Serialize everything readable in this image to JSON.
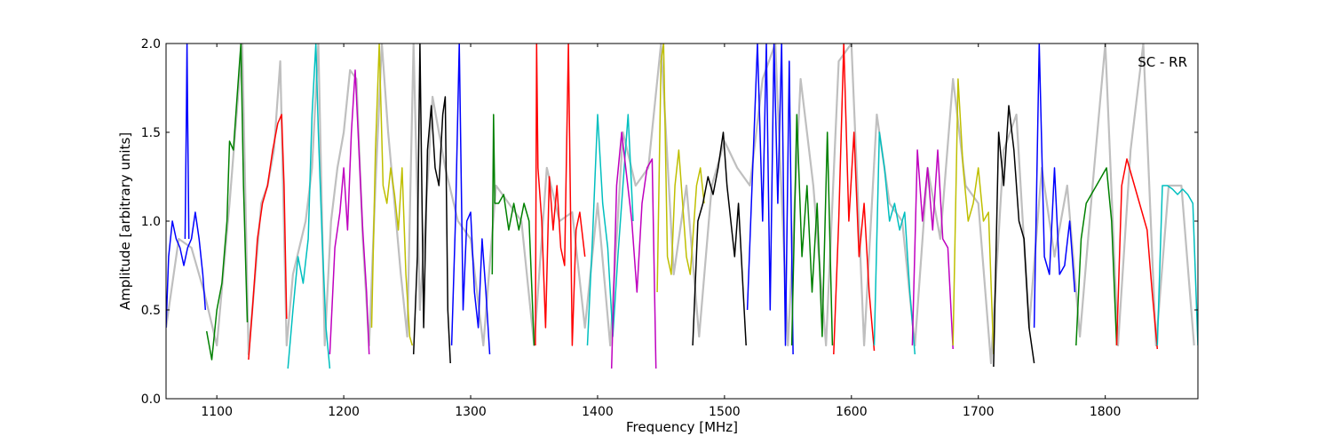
{
  "chart_data": {
    "type": "line",
    "xlabel": "Frequency [MHz]",
    "ylabel": "Amplitude [arbitrary units]",
    "annotation": "SC - RR",
    "xlim": [
      1060,
      1873
    ],
    "ylim": [
      0.0,
      2.0
    ],
    "xticks": [
      1100,
      1200,
      1300,
      1400,
      1500,
      1600,
      1700,
      1800
    ],
    "yticks": [
      0.0,
      0.5,
      1.0,
      1.5,
      2.0
    ],
    "ytick_labels": [
      "0.0",
      "0.5",
      "1.0",
      "1.5",
      "2.0"
    ],
    "grid": false,
    "legend": "none",
    "background_series": {
      "color": "#bfbfbf",
      "x": [
        1060,
        1070,
        1080,
        1090,
        1100,
        1110,
        1120,
        1125,
        1135,
        1140,
        1145,
        1150,
        1155,
        1160,
        1170,
        1175,
        1180,
        1185,
        1190,
        1195,
        1200,
        1205,
        1210,
        1215,
        1220,
        1225,
        1230,
        1235,
        1240,
        1245,
        1250,
        1255,
        1260,
        1270,
        1280,
        1290,
        1300,
        1310,
        1320,
        1330,
        1340,
        1350,
        1360,
        1370,
        1380,
        1390,
        1400,
        1410,
        1420,
        1430,
        1440,
        1450,
        1460,
        1470,
        1480,
        1490,
        1500,
        1510,
        1520,
        1530,
        1540,
        1550,
        1560,
        1570,
        1580,
        1590,
        1600,
        1610,
        1620,
        1630,
        1640,
        1650,
        1660,
        1670,
        1680,
        1690,
        1700,
        1710,
        1720,
        1730,
        1740,
        1750,
        1760,
        1770,
        1780,
        1790,
        1800,
        1810,
        1820,
        1830,
        1840,
        1850,
        1860,
        1870
      ],
      "y": [
        0.4,
        0.9,
        0.85,
        0.6,
        0.3,
        1.1,
        2.0,
        0.25,
        1.1,
        1.2,
        1.4,
        1.9,
        0.3,
        0.7,
        1.0,
        1.3,
        2.0,
        0.3,
        1.0,
        1.3,
        1.5,
        1.85,
        1.8,
        0.9,
        0.3,
        1.2,
        2.0,
        1.5,
        1.1,
        0.7,
        0.35,
        2.0,
        0.5,
        1.7,
        1.3,
        1.0,
        0.9,
        0.3,
        1.2,
        1.1,
        1.0,
        0.3,
        1.3,
        1.0,
        1.05,
        0.4,
        1.1,
        0.3,
        1.5,
        1.2,
        1.3,
        2.0,
        0.7,
        1.2,
        0.35,
        1.2,
        1.45,
        1.3,
        1.2,
        1.8,
        2.0,
        0.3,
        1.8,
        1.2,
        0.3,
        1.9,
        2.0,
        0.3,
        1.6,
        1.1,
        1.0,
        0.3,
        1.3,
        0.9,
        1.8,
        1.2,
        1.1,
        0.2,
        1.4,
        1.6,
        0.4,
        1.3,
        0.8,
        1.2,
        0.35,
        1.2,
        2.0,
        0.3,
        1.4,
        2.0,
        0.3,
        1.2,
        1.2,
        0.3
      ]
    },
    "series": [
      {
        "color": "#0000ff",
        "x": [
          1060,
          1062,
          1065,
          1068,
          1071,
          1074,
          1077,
          1080,
          1083,
          1086,
          1089,
          1091
        ],
        "y": [
          0.4,
          0.8,
          1.0,
          0.9,
          0.85,
          0.75,
          0.85,
          0.9,
          1.05,
          0.9,
          0.7,
          0.5
        ]
      },
      {
        "color": "#0000ff",
        "x": [
          1075,
          1076,
          1076.5,
          1077,
          1078
        ],
        "y": [
          0.9,
          1.6,
          2.0,
          1.6,
          0.9
        ]
      },
      {
        "color": "#008000",
        "x": [
          1092,
          1096,
          1100,
          1104,
          1108,
          1110,
          1113,
          1116,
          1119,
          1121,
          1124
        ],
        "y": [
          0.38,
          0.22,
          0.5,
          0.65,
          1.0,
          1.45,
          1.4,
          1.7,
          2.0,
          1.2,
          0.43
        ]
      },
      {
        "color": "#ff0000",
        "x": [
          1125,
          1128,
          1132,
          1136,
          1140,
          1144,
          1148,
          1151,
          1153,
          1155
        ],
        "y": [
          0.22,
          0.5,
          0.9,
          1.1,
          1.2,
          1.4,
          1.55,
          1.6,
          1.2,
          0.45
        ]
      },
      {
        "color": "#00bfbf",
        "x": [
          1156,
          1160,
          1164,
          1168,
          1172,
          1175,
          1178,
          1180,
          1183,
          1186,
          1189
        ],
        "y": [
          0.17,
          0.5,
          0.8,
          0.65,
          0.9,
          1.6,
          2.0,
          1.5,
          0.9,
          0.4,
          0.17
        ]
      },
      {
        "color": "#bf00bf",
        "x": [
          1189,
          1193,
          1197,
          1200,
          1203,
          1206,
          1209,
          1212,
          1215,
          1218,
          1220
        ],
        "y": [
          0.25,
          0.85,
          1.05,
          1.3,
          0.95,
          1.5,
          1.85,
          1.4,
          0.95,
          0.6,
          0.25
        ]
      },
      {
        "color": "#bfbf00",
        "x": [
          1222,
          1225,
          1228,
          1231,
          1234,
          1237,
          1240,
          1243,
          1246,
          1249,
          1252,
          1254
        ],
        "y": [
          0.4,
          1.4,
          2.0,
          1.2,
          1.1,
          1.3,
          1.15,
          0.95,
          1.3,
          0.7,
          0.35,
          0.3
        ]
      },
      {
        "color": "#000000",
        "x": [
          1255,
          1258,
          1260,
          1263,
          1266,
          1269,
          1272,
          1275,
          1278,
          1280,
          1282,
          1284
        ],
        "y": [
          0.25,
          0.8,
          2.0,
          0.4,
          1.4,
          1.65,
          1.3,
          1.2,
          1.6,
          1.7,
          0.5,
          0.2
        ]
      },
      {
        "color": "#0000ff",
        "x": [
          1285,
          1288,
          1291,
          1294,
          1297,
          1300,
          1303,
          1306,
          1309,
          1312,
          1315
        ],
        "y": [
          0.3,
          1.0,
          2.0,
          0.5,
          1.0,
          1.05,
          0.6,
          0.4,
          0.9,
          0.6,
          0.25
        ]
      },
      {
        "color": "#008000",
        "x": [
          1317,
          1318,
          1319,
          1322,
          1326,
          1330,
          1334,
          1338,
          1342,
          1346,
          1350
        ],
        "y": [
          0.7,
          1.6,
          1.1,
          1.1,
          1.15,
          0.95,
          1.1,
          0.95,
          1.1,
          1.0,
          0.3
        ]
      },
      {
        "color": "#ff0000",
        "x": [
          1351,
          1352,
          1353,
          1356,
          1359,
          1362,
          1365,
          1368,
          1371,
          1374,
          1377,
          1380,
          1383,
          1386,
          1390
        ],
        "y": [
          0.3,
          2.0,
          1.3,
          1.0,
          0.4,
          1.25,
          0.95,
          1.2,
          0.85,
          0.75,
          2.0,
          0.3,
          0.95,
          1.05,
          0.8
        ]
      },
      {
        "color": "#00bfbf",
        "x": [
          1392,
          1396,
          1400,
          1404,
          1408,
          1412,
          1416,
          1420,
          1424,
          1428
        ],
        "y": [
          0.3,
          0.9,
          1.6,
          1.1,
          0.85,
          0.35,
          0.8,
          1.2,
          1.6,
          1.0
        ]
      },
      {
        "color": "#bf00bf",
        "x": [
          1411,
          1415,
          1419,
          1423,
          1427,
          1431,
          1435,
          1439,
          1443,
          1446
        ],
        "y": [
          0.17,
          1.2,
          1.5,
          1.25,
          1.0,
          0.6,
          1.1,
          1.3,
          1.35,
          0.17
        ]
      },
      {
        "color": "#bfbf00",
        "x": [
          1447,
          1450,
          1452,
          1455,
          1458,
          1461,
          1464,
          1467,
          1470,
          1473,
          1476,
          1478,
          1481,
          1484
        ],
        "y": [
          0.6,
          1.9,
          2.0,
          0.8,
          0.7,
          1.2,
          1.4,
          1.1,
          0.8,
          0.7,
          1.0,
          1.2,
          1.3,
          1.1
        ]
      },
      {
        "color": "#000000",
        "x": [
          1475,
          1479,
          1483,
          1487,
          1491,
          1495,
          1499,
          1502,
          1505,
          1508,
          1511,
          1514,
          1517
        ],
        "y": [
          0.3,
          1.0,
          1.1,
          1.25,
          1.15,
          1.3,
          1.5,
          1.2,
          1.0,
          0.8,
          1.1,
          0.7,
          0.3
        ]
      },
      {
        "color": "#0000ff",
        "x": [
          1518,
          1522,
          1526,
          1530,
          1533,
          1536,
          1539,
          1542,
          1545,
          1548,
          1551,
          1554
        ],
        "y": [
          0.5,
          1.25,
          2.0,
          1.0,
          2.0,
          0.5,
          2.0,
          1.1,
          2.0,
          0.3,
          1.9,
          0.25
        ]
      },
      {
        "color": "#008000",
        "x": [
          1553,
          1557,
          1561,
          1565,
          1569,
          1573,
          1577,
          1581,
          1585
        ],
        "y": [
          0.3,
          1.6,
          0.8,
          1.2,
          0.6,
          1.1,
          0.35,
          1.5,
          0.3
        ]
      },
      {
        "color": "#ff0000",
        "x": [
          1586,
          1590,
          1594,
          1598,
          1602,
          1606,
          1610,
          1614,
          1618
        ],
        "y": [
          0.25,
          1.0,
          2.0,
          1.0,
          1.5,
          0.8,
          1.1,
          0.6,
          0.27
        ]
      },
      {
        "color": "#00bfbf",
        "x": [
          1618,
          1622,
          1626,
          1630,
          1634,
          1638,
          1642,
          1646,
          1650
        ],
        "y": [
          0.3,
          1.5,
          1.3,
          1.0,
          1.1,
          0.95,
          1.05,
          0.6,
          0.25
        ]
      },
      {
        "color": "#bf00bf",
        "x": [
          1648,
          1652,
          1656,
          1660,
          1664,
          1668,
          1672,
          1676,
          1680
        ],
        "y": [
          0.3,
          1.4,
          1.0,
          1.3,
          0.95,
          1.4,
          0.9,
          0.85,
          0.28
        ]
      },
      {
        "color": "#bfbf00",
        "x": [
          1680,
          1684,
          1688,
          1692,
          1696,
          1700,
          1704,
          1708,
          1712
        ],
        "y": [
          0.3,
          1.8,
          1.3,
          1.0,
          1.1,
          1.3,
          1.0,
          1.05,
          0.25
        ]
      },
      {
        "color": "#000000",
        "x": [
          1712,
          1716,
          1720,
          1724,
          1728,
          1732,
          1736,
          1740,
          1744
        ],
        "y": [
          0.18,
          1.5,
          1.2,
          1.65,
          1.4,
          1.0,
          0.9,
          0.4,
          0.2
        ]
      },
      {
        "color": "#0000ff",
        "x": [
          1744,
          1748,
          1752,
          1756,
          1760,
          1764,
          1768,
          1772,
          1776
        ],
        "y": [
          0.4,
          2.0,
          0.8,
          0.7,
          1.3,
          0.7,
          0.75,
          1.0,
          0.6
        ]
      },
      {
        "color": "#008000",
        "x": [
          1777,
          1781,
          1785,
          1789,
          1793,
          1797,
          1801,
          1805,
          1809
        ],
        "y": [
          0.3,
          0.9,
          1.1,
          1.15,
          1.2,
          1.25,
          1.3,
          1.0,
          0.3
        ]
      },
      {
        "color": "#ff0000",
        "x": [
          1809,
          1813,
          1817,
          1821,
          1825,
          1829,
          1833,
          1837,
          1841
        ],
        "y": [
          0.3,
          1.2,
          1.35,
          1.25,
          1.15,
          1.05,
          0.95,
          0.6,
          0.28
        ]
      },
      {
        "color": "#00bfbf",
        "x": [
          1841,
          1845,
          1849,
          1853,
          1857,
          1861,
          1865,
          1869,
          1873
        ],
        "y": [
          0.3,
          1.2,
          1.2,
          1.18,
          1.15,
          1.18,
          1.15,
          1.1,
          0.3
        ]
      }
    ]
  }
}
